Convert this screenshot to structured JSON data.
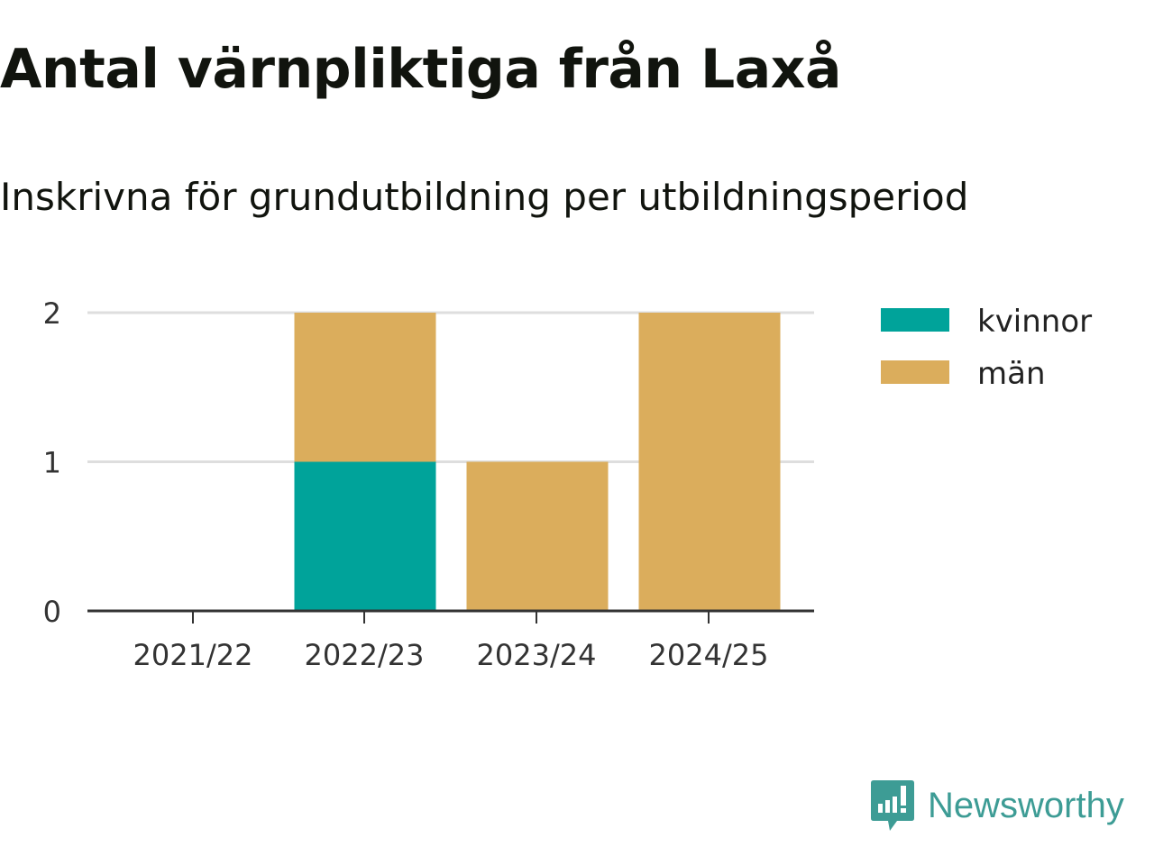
{
  "title": "Antal värnpliktiga från Laxå",
  "subtitle": "Inskrivna för grundutbildning per utbildningsperiod",
  "logo": "Newsworthy",
  "colors": {
    "kvinnor": "#00a39a",
    "män": "#dbad5c"
  },
  "chart_data": {
    "type": "bar",
    "stacked": true,
    "categories": [
      "2021/22",
      "2022/23",
      "2023/24",
      "2024/25"
    ],
    "series": [
      {
        "name": "kvinnor",
        "values": [
          0,
          1,
          0,
          0
        ]
      },
      {
        "name": "män",
        "values": [
          0,
          1,
          1,
          2
        ]
      }
    ],
    "yticks": [
      "0",
      "1",
      "2"
    ],
    "ylim": [
      0,
      2
    ],
    "grid": true,
    "legend": "right"
  }
}
